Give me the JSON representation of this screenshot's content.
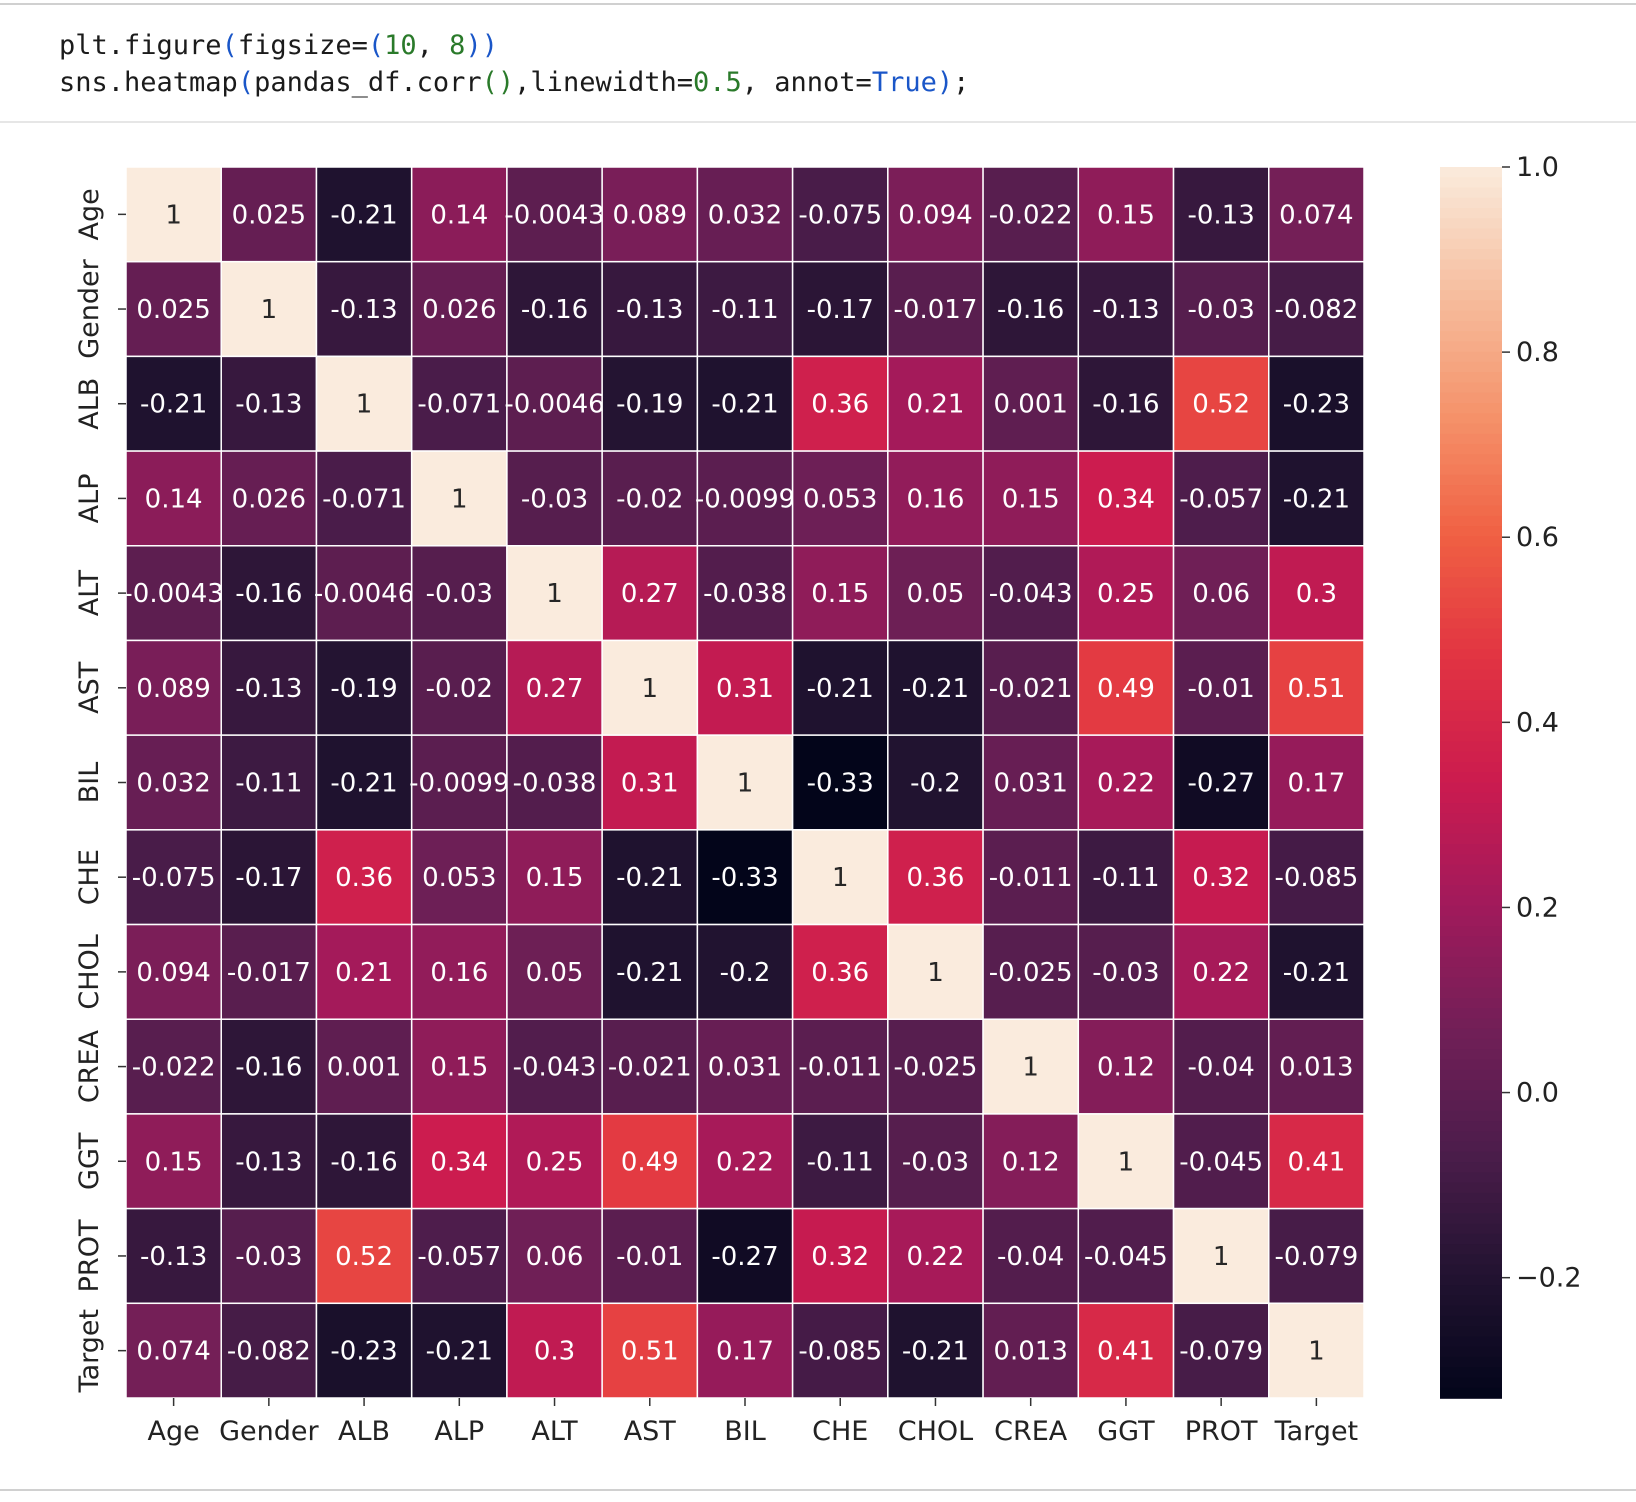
{
  "code": {
    "lines": [
      [
        {
          "text": "plt.figure",
          "color": "#1b1b1b"
        },
        {
          "text": "(",
          "color": "#1a56c8"
        },
        {
          "text": "figsize=",
          "color": "#1b1b1b"
        },
        {
          "text": "(",
          "color": "#1a56c8"
        },
        {
          "text": "10",
          "color": "#2a7a2a"
        },
        {
          "text": ", ",
          "color": "#1b1b1b"
        },
        {
          "text": "8",
          "color": "#2a7a2a"
        },
        {
          "text": "))",
          "color": "#1a56c8"
        }
      ],
      [
        {
          "text": "sns.heatmap",
          "color": "#1b1b1b"
        },
        {
          "text": "(",
          "color": "#1a56c8"
        },
        {
          "text": "pandas_df.corr",
          "color": "#1b1b1b"
        },
        {
          "text": "()",
          "color": "#2a7a2a"
        },
        {
          "text": ",linewidth=",
          "color": "#1b1b1b"
        },
        {
          "text": "0.5",
          "color": "#2a7a2a"
        },
        {
          "text": ", annot=",
          "color": "#1b1b1b"
        },
        {
          "text": "True",
          "color": "#1a56c8"
        },
        {
          "text": ")",
          "color": "#1a56c8"
        },
        {
          "text": ";",
          "color": "#1b1b1b"
        }
      ]
    ]
  },
  "chart_data": {
    "type": "heatmap",
    "x_categories": [
      "Age",
      "Gender",
      "ALB",
      "ALP",
      "ALT",
      "AST",
      "BIL",
      "CHE",
      "CHOL",
      "CREA",
      "GGT",
      "PROT",
      "Target"
    ],
    "y_categories": [
      "Age",
      "Gender",
      "ALB",
      "ALP",
      "ALT",
      "AST",
      "BIL",
      "CHE",
      "CHOL",
      "CREA",
      "GGT",
      "PROT",
      "Target"
    ],
    "values": [
      [
        1,
        0.025,
        -0.21,
        0.14,
        -0.0043,
        0.089,
        0.032,
        -0.075,
        0.094,
        -0.022,
        0.15,
        -0.13,
        0.074
      ],
      [
        0.025,
        1,
        -0.13,
        0.026,
        -0.16,
        -0.13,
        -0.11,
        -0.17,
        -0.017,
        -0.16,
        -0.13,
        -0.03,
        -0.082
      ],
      [
        -0.21,
        -0.13,
        1,
        -0.071,
        -0.0046,
        -0.19,
        -0.21,
        0.36,
        0.21,
        0.001,
        -0.16,
        0.52,
        -0.23
      ],
      [
        0.14,
        0.026,
        -0.071,
        1,
        -0.03,
        -0.02,
        -0.0099,
        0.053,
        0.16,
        0.15,
        0.34,
        -0.057,
        -0.21
      ],
      [
        -0.0043,
        -0.16,
        -0.0046,
        -0.03,
        1,
        0.27,
        -0.038,
        0.15,
        0.05,
        -0.043,
        0.25,
        0.06,
        0.3
      ],
      [
        0.089,
        -0.13,
        -0.19,
        -0.02,
        0.27,
        1,
        0.31,
        -0.21,
        -0.21,
        -0.021,
        0.49,
        -0.01,
        0.51
      ],
      [
        0.032,
        -0.11,
        -0.21,
        -0.0099,
        -0.038,
        0.31,
        1,
        -0.33,
        -0.2,
        0.031,
        0.22,
        -0.27,
        0.17
      ],
      [
        -0.075,
        -0.17,
        0.36,
        0.053,
        0.15,
        -0.21,
        -0.33,
        1,
        0.36,
        -0.011,
        -0.11,
        0.32,
        -0.085
      ],
      [
        0.094,
        -0.017,
        0.21,
        0.16,
        0.05,
        -0.21,
        -0.2,
        0.36,
        1,
        -0.025,
        -0.03,
        0.22,
        -0.21
      ],
      [
        -0.022,
        -0.16,
        0.001,
        0.15,
        -0.043,
        -0.021,
        0.031,
        -0.011,
        -0.025,
        1,
        0.12,
        -0.04,
        0.013
      ],
      [
        0.15,
        -0.13,
        -0.16,
        0.34,
        0.25,
        0.49,
        0.22,
        -0.11,
        -0.03,
        0.12,
        1,
        -0.045,
        0.41
      ],
      [
        -0.13,
        -0.03,
        0.52,
        -0.057,
        0.06,
        -0.01,
        -0.27,
        0.32,
        0.22,
        -0.04,
        -0.045,
        1,
        -0.079
      ],
      [
        0.074,
        -0.082,
        -0.23,
        -0.21,
        0.3,
        0.51,
        0.17,
        -0.085,
        -0.21,
        0.013,
        0.41,
        -0.079,
        1
      ]
    ],
    "clim": [
      -0.33,
      1
    ],
    "cticks": [
      {
        "value": -0.2,
        "label": "−0.2"
      },
      {
        "value": 0,
        "label": "0.0"
      },
      0.2,
      0.4,
      0.6,
      0.8,
      {
        "value": 1,
        "label": "1.0"
      }
    ],
    "colormap": "rocket"
  }
}
